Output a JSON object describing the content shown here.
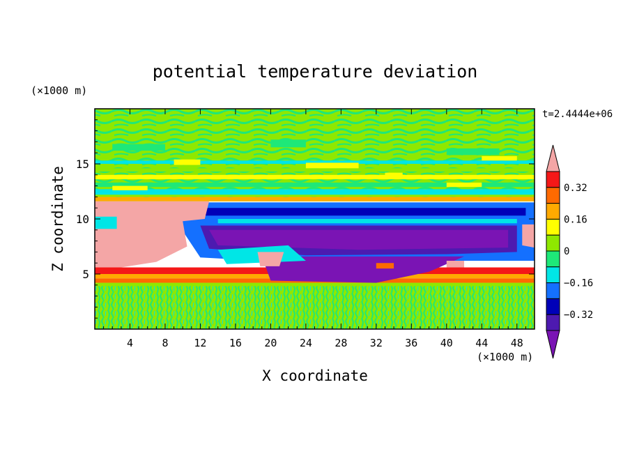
{
  "chart_data": {
    "type": "heatmap",
    "title": "potential temperature deviation",
    "time_label": "t=2.4444e+06",
    "xlabel": "X coordinate",
    "ylabel": "Z coordinate",
    "x_unit": "(×1000 m)",
    "y_unit": "(×1000 m)",
    "xlim": [
      0,
      50
    ],
    "ylim": [
      0,
      20
    ],
    "x_ticks": [
      4,
      8,
      12,
      16,
      20,
      24,
      28,
      32,
      36,
      40,
      44,
      48
    ],
    "y_ticks": [
      5,
      10,
      15
    ],
    "colorbar": {
      "tick_labels": [
        "0.32",
        "0.16",
        "0",
        "−0.16",
        "−0.32"
      ],
      "tick_values": [
        0.32,
        0.16,
        0,
        -0.16,
        -0.32
      ],
      "levels": [
        {
          "lo": 0.4,
          "hi": null,
          "color": "#f4a6a6"
        },
        {
          "lo": 0.32,
          "hi": 0.4,
          "color": "#f41818"
        },
        {
          "lo": 0.24,
          "hi": 0.32,
          "color": "#ff6a00"
        },
        {
          "lo": 0.16,
          "hi": 0.24,
          "color": "#ffaa00"
        },
        {
          "lo": 0.08,
          "hi": 0.16,
          "color": "#ffff00"
        },
        {
          "lo": 0,
          "hi": 0.08,
          "color": "#8fe800"
        },
        {
          "lo": -0.08,
          "hi": 0,
          "color": "#1ee878"
        },
        {
          "lo": -0.16,
          "hi": -0.08,
          "color": "#00e6e6"
        },
        {
          "lo": -0.24,
          "hi": -0.16,
          "color": "#1470ff"
        },
        {
          "lo": -0.32,
          "hi": -0.24,
          "color": "#0000b8"
        },
        {
          "lo": -0.4,
          "hi": -0.32,
          "color": "#4d1ab0"
        },
        {
          "lo": null,
          "hi": -0.4,
          "color": "#7a14b4"
        }
      ]
    },
    "field_regions": [
      {
        "name": "upper-layer",
        "x": [
          0,
          50
        ],
        "z": [
          11.6,
          20
        ],
        "value": 0.02
      },
      {
        "name": "upper-bands",
        "x": [
          0,
          50
        ],
        "z": [
          12.5,
          15.5
        ],
        "value": 0.1
      },
      {
        "name": "cold-layer",
        "x": [
          10,
          50
        ],
        "z": [
          6.2,
          11.6
        ],
        "value": -0.28
      },
      {
        "name": "cold-core",
        "x": [
          12,
          48
        ],
        "z": [
          7,
          9
        ],
        "value": -0.45
      },
      {
        "name": "cold-lower-band",
        "x": [
          19,
          42
        ],
        "z": [
          4.2,
          6.5
        ],
        "value": -0.45
      },
      {
        "name": "warm-block-left",
        "x": [
          0,
          13
        ],
        "z": [
          5.6,
          11.6
        ],
        "value": 0.45
      },
      {
        "name": "warm-patch-center",
        "x": [
          18.5,
          21.5
        ],
        "z": [
          5.6,
          7
        ],
        "value": 0.45
      },
      {
        "name": "warm-patch-right",
        "x": [
          48.5,
          50
        ],
        "z": [
          7.5,
          9.5
        ],
        "value": 0.45
      },
      {
        "name": "inversion-bands",
        "x": [
          0,
          50
        ],
        "z": [
          4.2,
          5.6
        ],
        "value": 0.2
      },
      {
        "name": "lower-layer",
        "x": [
          0,
          50
        ],
        "z": [
          0,
          4.2
        ],
        "value": 0.0
      }
    ]
  }
}
